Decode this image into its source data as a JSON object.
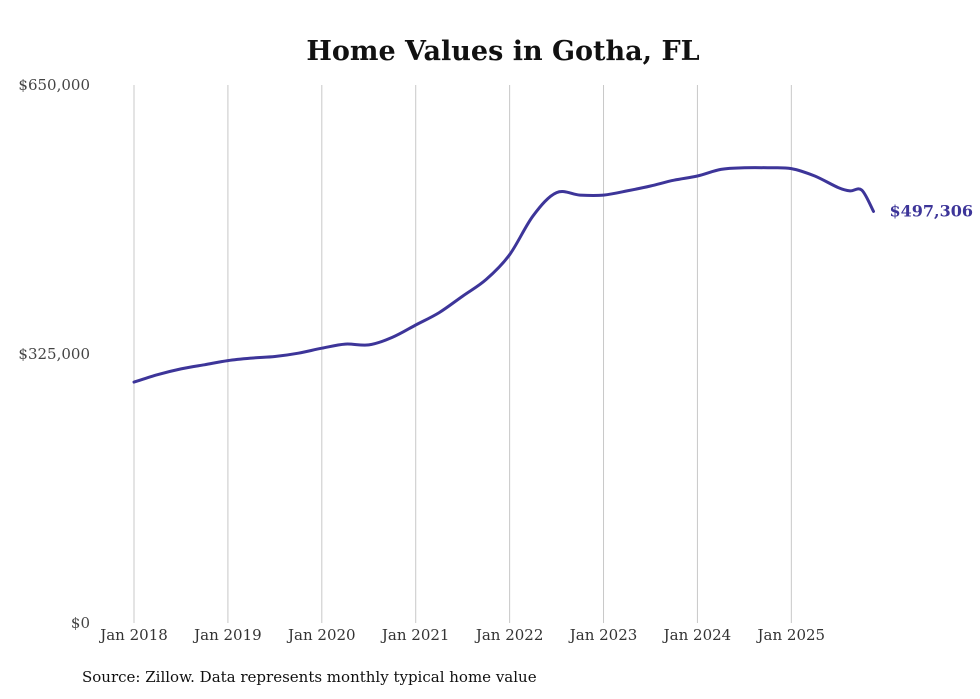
{
  "chart_data": {
    "type": "line",
    "title": "Home Values in Gotha, FL",
    "source": "Source: Zillow. Data represents monthly typical home value",
    "ylim": [
      0,
      650000
    ],
    "xlim": [
      2018.0,
      2025.875
    ],
    "y_ticks": [
      {
        "value": 0,
        "label": "$0"
      },
      {
        "value": 325000,
        "label": "$325,000"
      },
      {
        "value": 650000,
        "label": "$650,000"
      }
    ],
    "x_ticks": [
      {
        "value": 2018,
        "label": "Jan 2018"
      },
      {
        "value": 2019,
        "label": "Jan 2019"
      },
      {
        "value": 2020,
        "label": "Jan 2020"
      },
      {
        "value": 2021,
        "label": "Jan 2021"
      },
      {
        "value": 2022,
        "label": "Jan 2022"
      },
      {
        "value": 2023,
        "label": "Jan 2023"
      },
      {
        "value": 2024,
        "label": "Jan 2024"
      },
      {
        "value": 2025,
        "label": "Jan 2025"
      }
    ],
    "grid": "vertical",
    "series": [
      {
        "name": "Typical home value",
        "color": "#3d3599",
        "end_label": "$497,306",
        "x": [
          2018.0,
          2018.25,
          2018.5,
          2018.75,
          2019.0,
          2019.25,
          2019.5,
          2019.75,
          2020.0,
          2020.25,
          2020.5,
          2020.75,
          2021.0,
          2021.25,
          2021.5,
          2021.75,
          2022.0,
          2022.25,
          2022.5,
          2022.75,
          2023.0,
          2023.25,
          2023.5,
          2023.75,
          2024.0,
          2024.25,
          2024.5,
          2024.75,
          2025.0,
          2025.25,
          2025.5,
          2025.625,
          2025.75,
          2025.875
        ],
        "values": [
          291000,
          300000,
          307000,
          312000,
          317000,
          320000,
          322000,
          326000,
          332000,
          337000,
          336000,
          345000,
          360000,
          375000,
          395000,
          415000,
          445000,
          492000,
          520000,
          517000,
          517000,
          522000,
          528000,
          535000,
          540000,
          548000,
          550000,
          550000,
          549000,
          540000,
          526000,
          522000,
          523000,
          497306
        ]
      }
    ]
  }
}
